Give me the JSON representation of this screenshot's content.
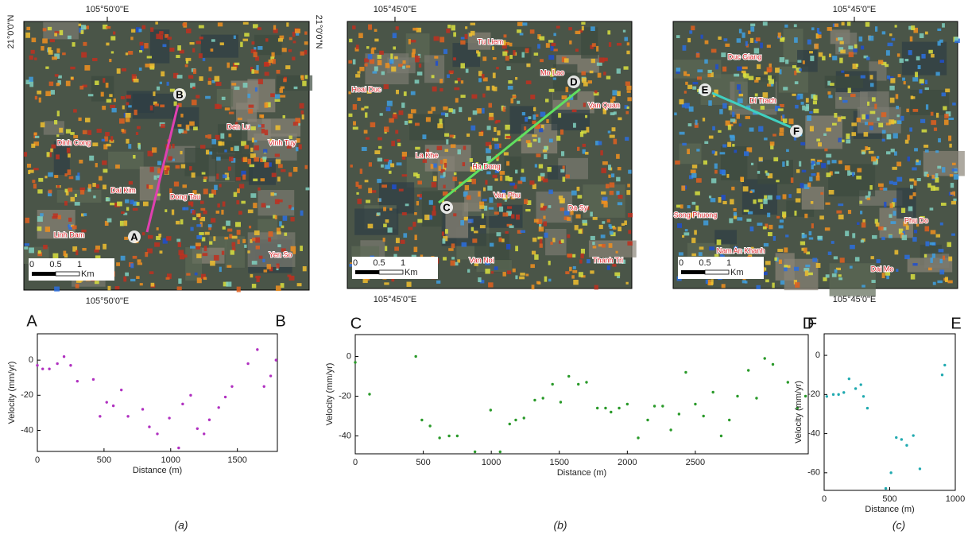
{
  "maps": [
    {
      "coord_top": "105°50'0\"E",
      "coord_bottom": "105°50'0\"E",
      "coord_left": "21°0'0\"N",
      "coord_right": "21°0'0\"N",
      "places": [
        "Dinh Cong",
        "Dai Kim",
        "Dong Tau",
        "Linh Dam",
        "Den Lu",
        "Vinh Tuy",
        "Yen So"
      ],
      "profile_start": "A",
      "profile_end": "B",
      "scale_labels": [
        "0",
        "0.5",
        "1"
      ],
      "scale_unit": "Km",
      "line_color": "#e040b0"
    },
    {
      "coord_top": "105°45'0\"E",
      "coord_bottom": "105°45'0\"E",
      "places": [
        "Tu Liem",
        "Hoai Duc",
        "Mo Lao",
        "Van Quan",
        "La Khe",
        "Ha Dong",
        "Van Phu",
        "Da Sy",
        "Van Noi",
        "Thanh Tri"
      ],
      "profile_start": "C",
      "profile_end": "D",
      "scale_labels": [
        "0",
        "0.5",
        "1"
      ],
      "scale_unit": "Km",
      "line_color": "#60e060"
    },
    {
      "coord_top": "105°45'0\"E",
      "coord_bottom": "105°45'0\"E",
      "places": [
        "Duc Giang",
        "Di Trach",
        "Song Phuong",
        "Phu Do",
        "Nam An Khanh",
        "Dai Mo"
      ],
      "profile_start": "E",
      "profile_end": "F",
      "scale_labels": [
        "0",
        "0.5",
        "1"
      ],
      "scale_unit": "Km",
      "line_color": "#40d0c0"
    }
  ],
  "chart_data": [
    {
      "type": "scatter",
      "start_label": "A",
      "end_label": "B",
      "xlabel": "Distance (m)",
      "ylabel": "Velocity (mm/yr)",
      "color": "#b030c0",
      "x": [
        0,
        40,
        90,
        150,
        200,
        250,
        300,
        420,
        470,
        520,
        570,
        630,
        680,
        790,
        840,
        900,
        990,
        1060,
        1090,
        1150,
        1200,
        1250,
        1290,
        1360,
        1410,
        1460,
        1580,
        1650,
        1700,
        1750,
        1790
      ],
      "values": [
        -3,
        -5,
        -5,
        -2,
        2,
        -3,
        -12,
        -11,
        -32,
        -24,
        -26,
        -17,
        -32,
        -28,
        -38,
        -42,
        -33,
        -50,
        -25,
        -20,
        -39,
        -42,
        -34,
        -27,
        -21,
        -15,
        -2,
        6,
        -15,
        -9,
        0
      ],
      "xlim": [
        0,
        1800
      ],
      "ylim": [
        -52,
        15
      ],
      "xticks": [
        0,
        500,
        1000,
        1500
      ],
      "yticks": [
        0,
        -20,
        -40
      ]
    },
    {
      "type": "scatter",
      "start_label": "C",
      "end_label": "D",
      "xlabel": "Distance (m)",
      "ylabel": "Velocity (mm/yr)",
      "color": "#2a9a2a",
      "x": [
        0,
        105,
        445,
        490,
        550,
        620,
        690,
        750,
        880,
        995,
        1065,
        1135,
        1180,
        1240,
        1320,
        1380,
        1450,
        1510,
        1570,
        1640,
        1700,
        1780,
        1840,
        1880,
        1940,
        2000,
        2080,
        2150,
        2200,
        2260,
        2320,
        2380,
        2430,
        2500,
        2560,
        2630,
        2690,
        2750,
        2810,
        2890,
        2950,
        3010,
        3070,
        3180,
        3250,
        3310
      ],
      "values": [
        -3,
        -19,
        0,
        -32,
        -35,
        -41,
        -40,
        -40,
        -48,
        -27,
        -48,
        -34,
        -32,
        -31,
        -22,
        -21,
        -14,
        -23,
        -10,
        -14,
        -13,
        -26,
        -26,
        -28,
        -26,
        -24,
        -41,
        -32,
        -25,
        -25,
        -37,
        -29,
        -8,
        -24,
        -30,
        -18,
        -40,
        -32,
        -20,
        -7,
        -21,
        -1,
        -4,
        -13,
        -26,
        -20
      ],
      "xlim": [
        0,
        3330
      ],
      "ylim": [
        -49,
        11
      ],
      "xticks": [
        0,
        500,
        1000,
        1500,
        2000,
        2500
      ],
      "yticks": [
        0,
        -20,
        -40
      ]
    },
    {
      "type": "scatter",
      "start_label": "F",
      "end_label": "E",
      "xlabel": "Distance (m)",
      "ylabel": "Velocity (mm/yr)",
      "color": "#20aab0",
      "x": [
        20,
        70,
        110,
        150,
        190,
        240,
        280,
        300,
        330,
        470,
        510,
        550,
        590,
        630,
        680,
        730,
        900,
        920
      ],
      "values": [
        -21,
        -20,
        -20,
        -19,
        -12,
        -17,
        -15,
        -21,
        -27,
        -68,
        -60,
        -42,
        -43,
        -46,
        -41,
        -58,
        -10,
        -5
      ],
      "xlim": [
        0,
        1000
      ],
      "ylim": [
        -69,
        11
      ],
      "xticks": [
        0,
        500,
        1000
      ],
      "yticks": [
        0,
        -20,
        -40,
        -60
      ]
    }
  ],
  "captions": [
    "(a)",
    "(b)",
    "(c)"
  ]
}
